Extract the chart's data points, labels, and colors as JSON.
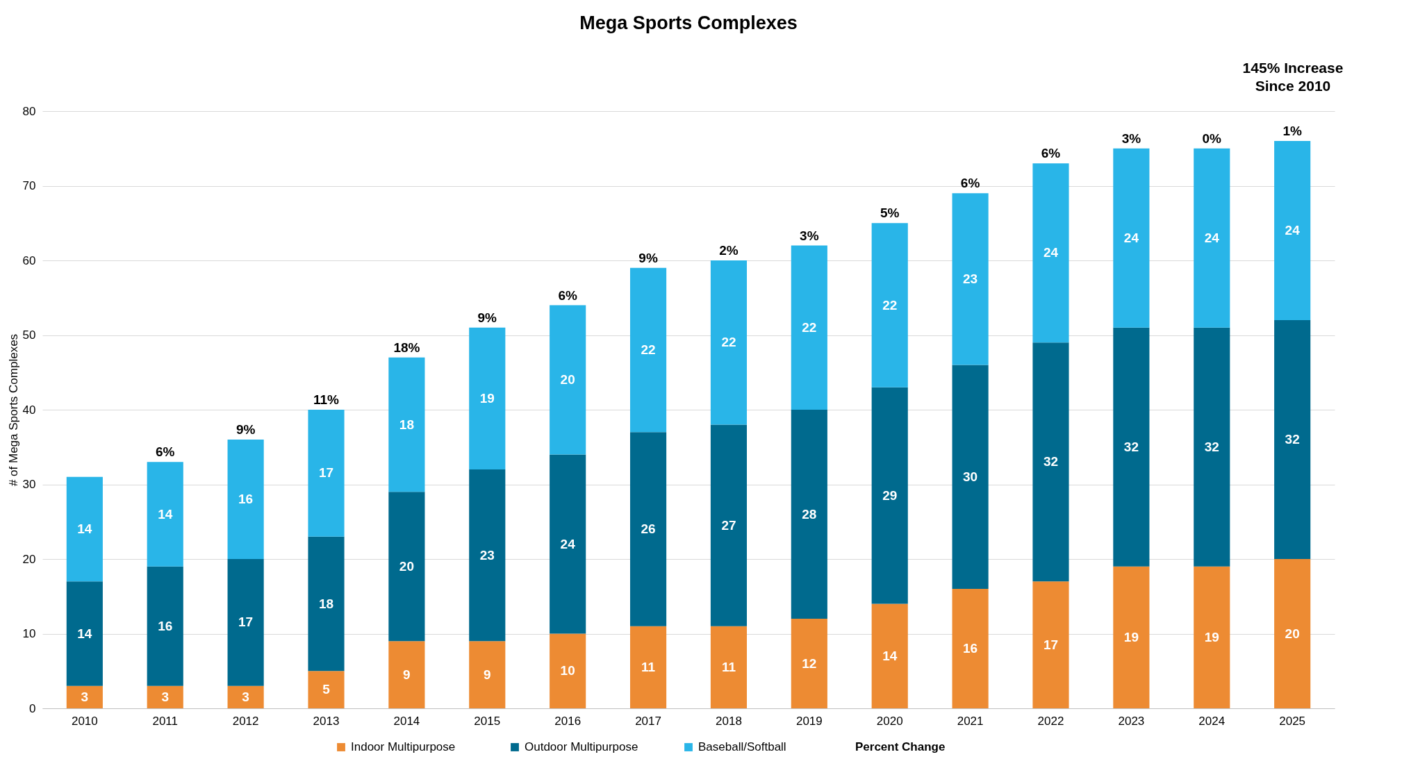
{
  "chart_data": {
    "type": "bar",
    "title": "Mega Sports Complexes",
    "ylabel": "# of Mega Sports Complexes",
    "categories": [
      "2010",
      "2011",
      "2012",
      "2013",
      "2014",
      "2015",
      "2016",
      "2017",
      "2018",
      "2019",
      "2020",
      "2021",
      "2022",
      "2023",
      "2024",
      "2025"
    ],
    "series": [
      {
        "name": "Indoor Multipurpose",
        "color": "#ed8b33",
        "values": [
          3,
          3,
          3,
          5,
          9,
          9,
          10,
          11,
          11,
          12,
          14,
          16,
          17,
          19,
          19,
          20
        ]
      },
      {
        "name": "Outdoor Multipurpose",
        "color": "#006a8e",
        "values": [
          14,
          16,
          17,
          18,
          20,
          23,
          24,
          26,
          27,
          28,
          29,
          30,
          32,
          32,
          32,
          32
        ]
      },
      {
        "name": "Baseball/Softball",
        "color": "#29b5e8",
        "values": [
          14,
          14,
          16,
          17,
          18,
          19,
          20,
          22,
          22,
          22,
          22,
          23,
          24,
          24,
          24,
          24
        ]
      }
    ],
    "stacked": true,
    "data_labels": true,
    "ylim": [
      0,
      80
    ],
    "yticks": [
      0,
      10,
      20,
      30,
      40,
      50,
      60,
      70,
      80
    ],
    "grid": "y",
    "legend": "bottom",
    "annotations": [
      "145% Increase\nSince 2010",
      "Percent Change",
      {
        "text": "6%",
        "x": "2011",
        "y": 33
      },
      {
        "text": "9%",
        "x": "2012",
        "y": 36
      },
      {
        "text": "11%",
        "x": "2013",
        "y": 40
      },
      {
        "text": "18%",
        "x": "2014",
        "y": 47
      },
      {
        "text": "9%",
        "x": "2015",
        "y": 51
      },
      {
        "text": "6%",
        "x": "2016",
        "y": 54
      },
      {
        "text": "9%",
        "x": "2017",
        "y": 59
      },
      {
        "text": "2%",
        "x": "2018",
        "y": 60
      },
      {
        "text": "3%",
        "x": "2019",
        "y": 62
      },
      {
        "text": "5%",
        "x": "2020",
        "y": 65
      },
      {
        "text": "6%",
        "x": "2021",
        "y": 69
      },
      {
        "text": "6%",
        "x": "2022",
        "y": 73
      },
      {
        "text": "3%",
        "x": "2023",
        "y": 75
      },
      {
        "text": "0%",
        "x": "2024",
        "y": 75
      },
      {
        "text": "1%",
        "x": "2025",
        "y": 76
      }
    ]
  }
}
